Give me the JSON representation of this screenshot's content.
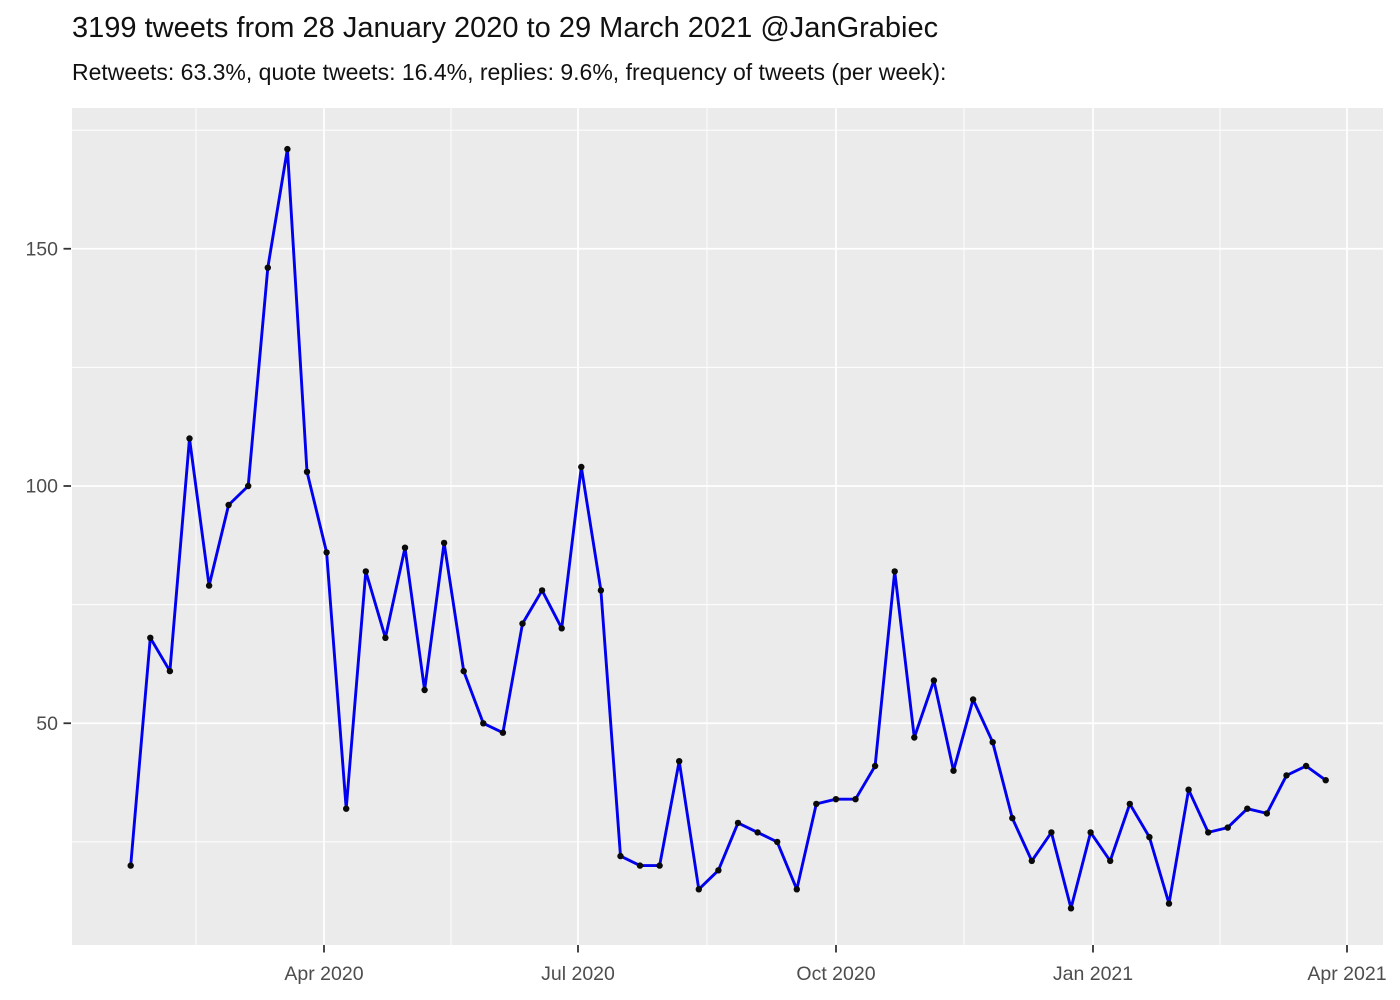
{
  "header": {
    "title": "3199 tweets from 28 January 2020 to 29 March 2021 @JanGrabiec",
    "subtitle": "Retweets: 63.3%, quote tweets: 16.4%, replies: 9.6%, frequency of tweets (per week):"
  },
  "chart_data": {
    "type": "line",
    "series_name": "tweets-per-week",
    "x": [
      "2020-01-27",
      "2020-02-03",
      "2020-02-10",
      "2020-02-17",
      "2020-02-24",
      "2020-03-02",
      "2020-03-09",
      "2020-03-16",
      "2020-03-23",
      "2020-03-30",
      "2020-04-06",
      "2020-04-13",
      "2020-04-20",
      "2020-04-27",
      "2020-05-04",
      "2020-05-11",
      "2020-05-18",
      "2020-05-25",
      "2020-06-01",
      "2020-06-08",
      "2020-06-15",
      "2020-06-22",
      "2020-06-29",
      "2020-07-06",
      "2020-07-13",
      "2020-07-20",
      "2020-07-27",
      "2020-08-03",
      "2020-08-10",
      "2020-08-17",
      "2020-08-24",
      "2020-08-31",
      "2020-09-07",
      "2020-09-14",
      "2020-09-21",
      "2020-09-28",
      "2020-10-05",
      "2020-10-12",
      "2020-10-19",
      "2020-10-26",
      "2020-11-02",
      "2020-11-09",
      "2020-11-16",
      "2020-11-23",
      "2020-11-30",
      "2020-12-07",
      "2020-12-14",
      "2020-12-21",
      "2020-12-28",
      "2021-01-04",
      "2021-01-11",
      "2021-01-18",
      "2021-01-25",
      "2021-02-01",
      "2021-02-08",
      "2021-02-15",
      "2021-02-22",
      "2021-03-01",
      "2021-03-08",
      "2021-03-15",
      "2021-03-22",
      "2021-03-29"
    ],
    "values": [
      20,
      68,
      61,
      110,
      79,
      96,
      100,
      146,
      171,
      103,
      86,
      32,
      82,
      68,
      87,
      57,
      88,
      61,
      50,
      48,
      71,
      78,
      70,
      104,
      78,
      22,
      20,
      20,
      42,
      15,
      19,
      29,
      27,
      25,
      15,
      33,
      34,
      34,
      41,
      82,
      47,
      59,
      40,
      55,
      46,
      30,
      21,
      27,
      11,
      27,
      21,
      33,
      26,
      12,
      36,
      27,
      28,
      32,
      31,
      39,
      41,
      38
    ],
    "total_tweets": 3199,
    "title": "3199 tweets from 28 January 2020 to 29 March 2021 @JanGrabiec",
    "subtitle": "Retweets: 63.3%, quote tweets: 16.4%, replies: 9.6%, frequency of tweets (per week):",
    "xlabel": "",
    "ylabel": "",
    "x_tick_labels": [
      "Apr 2020",
      "Jul 2020",
      "Oct 2020",
      "Jan 2021",
      "Apr 2021"
    ],
    "y_ticks": [
      50,
      100,
      150
    ],
    "y_minor_ticks": [
      25,
      75,
      125,
      175
    ],
    "ylim": [
      3,
      176
    ],
    "grid": "major-and-minor, white on gray panel",
    "legend": "none",
    "colors": {
      "line": "#0101EF",
      "point": "#0a0a0a",
      "panel_bg": "#EBEBEB",
      "grid_major": "#FFFFFF",
      "grid_minor": "#FFFFFF",
      "tick_mark": "#333333",
      "tick_label": "#4D4D4D",
      "title_text": "#111111"
    }
  }
}
